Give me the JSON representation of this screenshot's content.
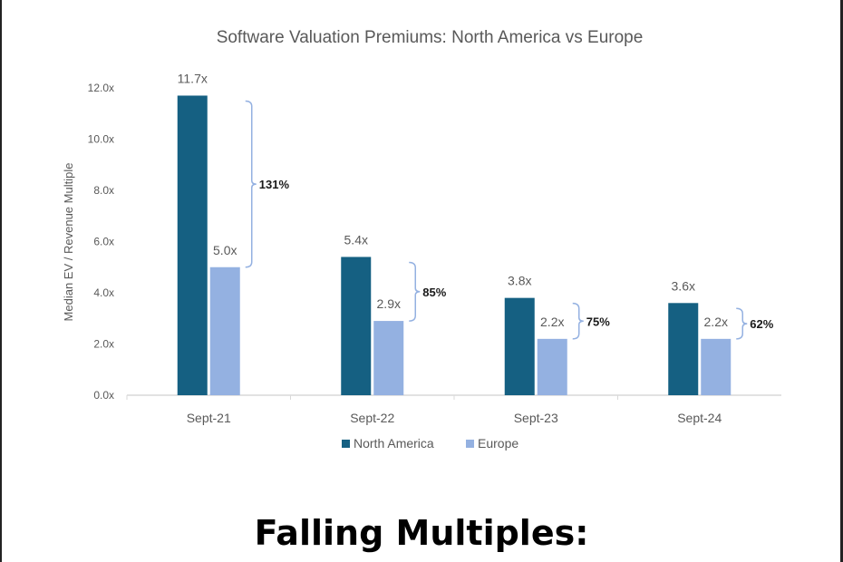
{
  "chart_data": {
    "type": "bar",
    "title": "Software Valuation Premiums: North America vs Europe",
    "ylabel": "Median EV / Revenue Multiple",
    "xlabel": "",
    "categories": [
      "Sept-21",
      "Sept-22",
      "Sept-23",
      "Sept-24"
    ],
    "series": [
      {
        "name": "North America",
        "values": [
          11.7,
          5.4,
          3.8,
          3.6
        ],
        "labels": [
          "11.7x",
          "5.4x",
          "3.8x",
          "3.6x"
        ],
        "color": "#156082"
      },
      {
        "name": "Europe",
        "values": [
          5.0,
          2.9,
          2.2,
          2.2
        ],
        "labels": [
          "5.0x",
          "2.9x",
          "2.2x",
          "2.2x"
        ],
        "color": "#94b1e1"
      }
    ],
    "premiums": [
      "131%",
      "85%",
      "75%",
      "62%"
    ],
    "ylim": [
      0,
      12
    ],
    "yticks": [
      "0.0x",
      "2.0x",
      "4.0x",
      "6.0x",
      "8.0x",
      "10.0x",
      "12.0x"
    ],
    "grid": false,
    "legend_position": "bottom"
  },
  "caption": "Falling Multiples:",
  "colors": {
    "axis_text": "#595959",
    "axis_line": "#d9d9d9",
    "bracket": "#94b1e1"
  }
}
